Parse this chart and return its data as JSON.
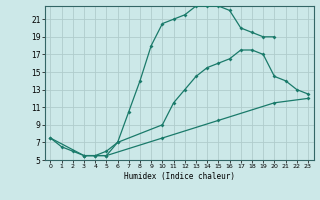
{
  "xlabel": "Humidex (Indice chaleur)",
  "bg_color": "#cce8e8",
  "grid_color": "#b0cccc",
  "line_color": "#1a7a6a",
  "xlim": [
    -0.5,
    23.5
  ],
  "ylim": [
    5,
    22.5
  ],
  "xticks": [
    0,
    1,
    2,
    3,
    4,
    5,
    6,
    7,
    8,
    9,
    10,
    11,
    12,
    13,
    14,
    15,
    16,
    17,
    18,
    19,
    20,
    21,
    22,
    23
  ],
  "yticks": [
    5,
    7,
    9,
    11,
    13,
    15,
    17,
    19,
    21
  ],
  "curve1_x": [
    0,
    1,
    2,
    3,
    4,
    5,
    6,
    7,
    8,
    9,
    10,
    11,
    12,
    13,
    14,
    15,
    16,
    17,
    18,
    19,
    20
  ],
  "curve1_y": [
    7.5,
    6.5,
    6.0,
    5.5,
    5.5,
    6.0,
    7.0,
    10.5,
    14.0,
    18.0,
    20.5,
    21.0,
    21.5,
    22.5,
    22.5,
    22.5,
    22.0,
    20.0,
    19.5,
    19.0,
    19.0
  ],
  "curve2_x": [
    0,
    3,
    4,
    5,
    6,
    10,
    11,
    12,
    13,
    14,
    15,
    16,
    17,
    18,
    19,
    20,
    21,
    22,
    23
  ],
  "curve2_y": [
    7.5,
    5.5,
    5.5,
    5.5,
    7.0,
    9.0,
    11.5,
    13.0,
    14.5,
    15.5,
    16.0,
    16.5,
    17.5,
    17.5,
    17.0,
    14.5,
    14.0,
    13.0,
    12.5
  ],
  "curve3_x": [
    3,
    5,
    10,
    15,
    20,
    23
  ],
  "curve3_y": [
    5.5,
    5.5,
    7.5,
    9.5,
    11.5,
    12.0
  ]
}
